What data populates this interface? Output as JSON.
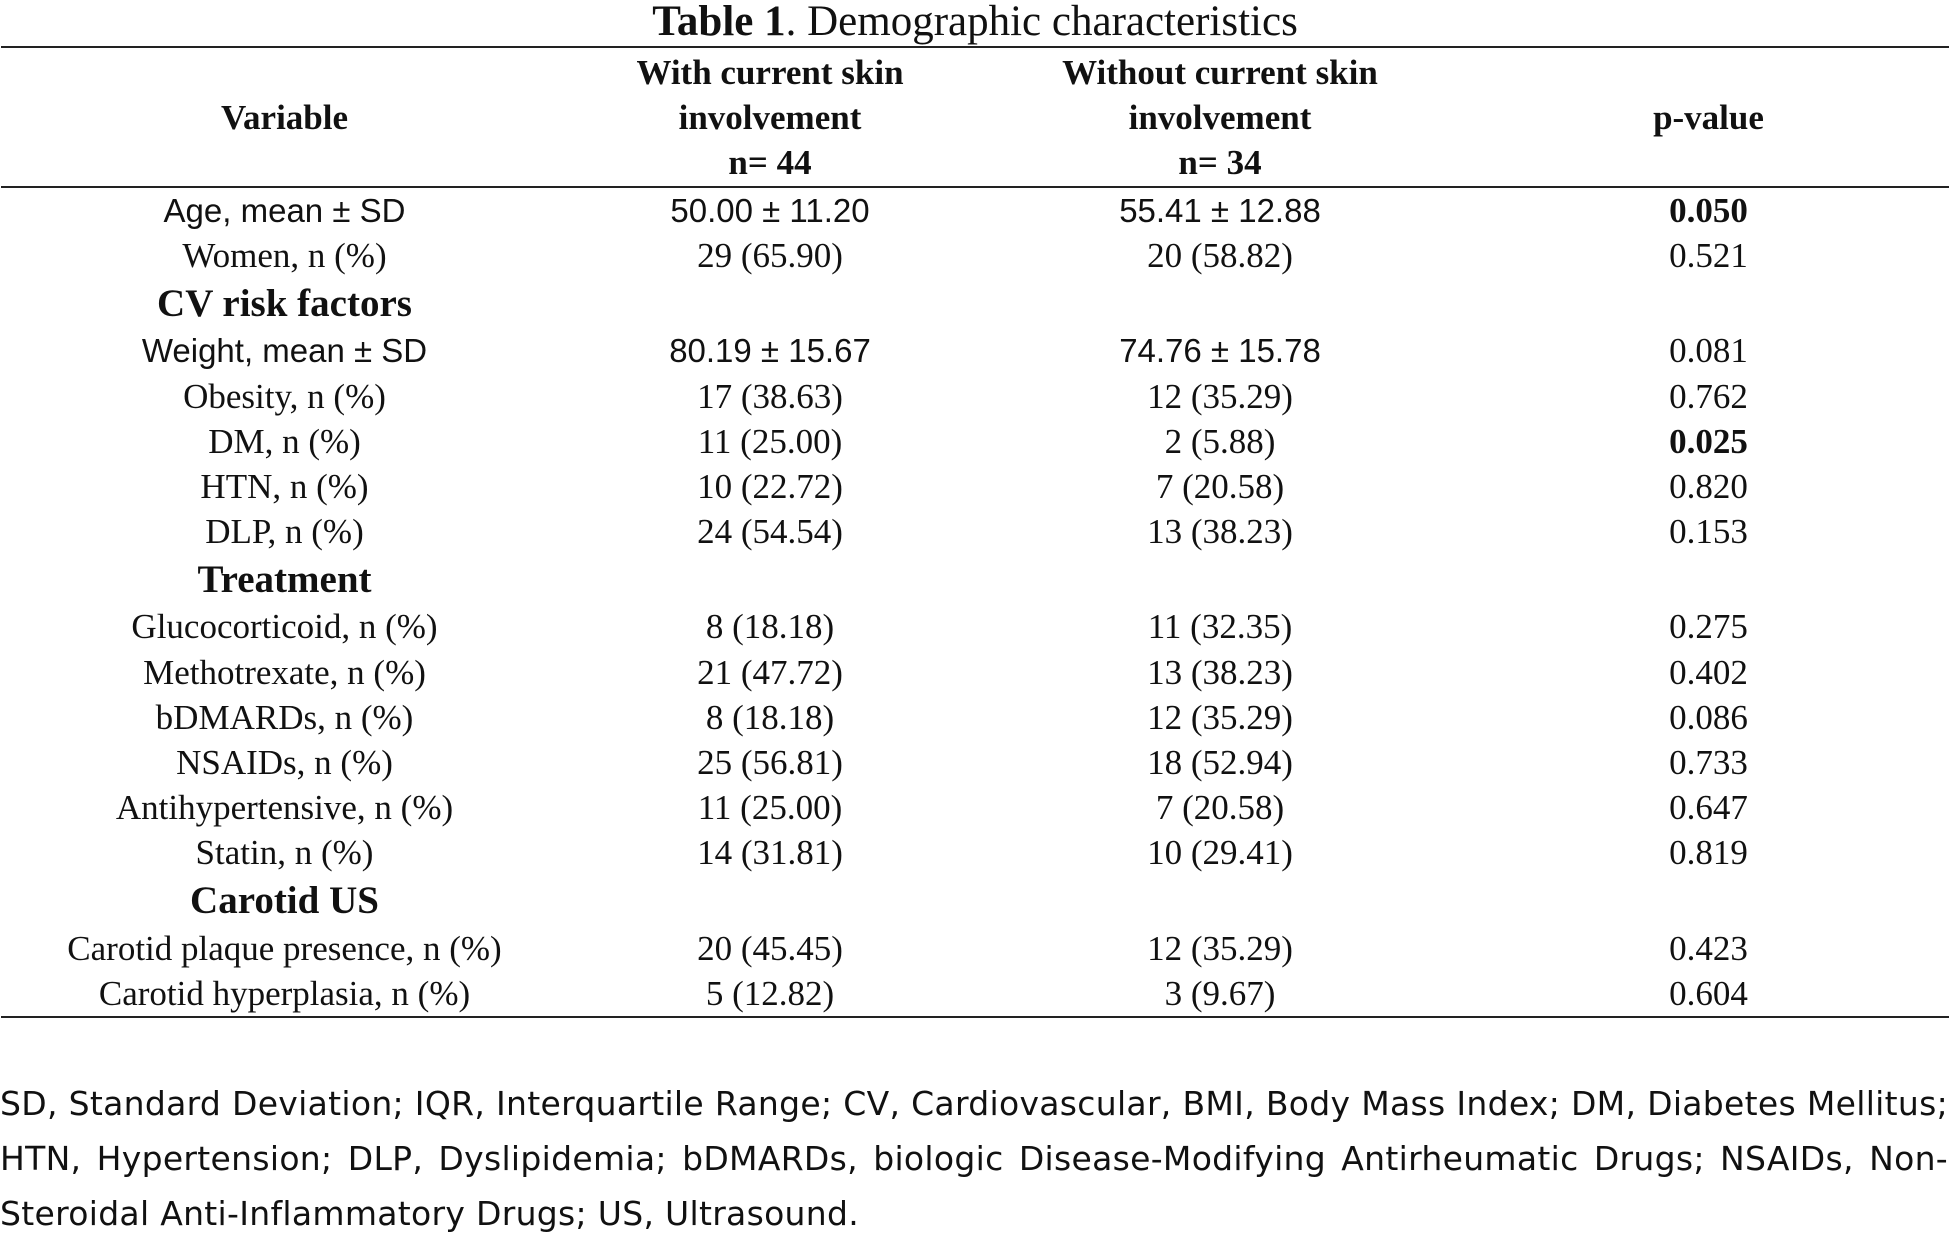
{
  "caption": {
    "label": "Table 1",
    "text": ". Demographic characteristics"
  },
  "table": {
    "headers": {
      "variable": "Variable",
      "with_line1": "With current skin",
      "with_line2": "involvement",
      "with_line3": "n= 44",
      "without_line1": "Without current skin",
      "without_line2": "involvement",
      "without_line3": "n= 34",
      "pvalue": "p-value"
    },
    "rows": [
      {
        "variable": "Age, mean ± SD",
        "with": "50.00 ± 11.20",
        "without": "55.41 ± 12.88",
        "p": "0.050"
      },
      {
        "variable": "Women, n (%)",
        "with": "29 (65.90)",
        "without": "20 (58.82)",
        "p": "0.521"
      },
      {
        "section": "CV risk factors"
      },
      {
        "variable": "Weight, mean ± SD",
        "with": "80.19 ± 15.67",
        "without": "74.76 ± 15.78",
        "p": "0.081"
      },
      {
        "variable": "Obesity, n (%)",
        "with": "17 (38.63)",
        "without": "12 (35.29)",
        "p": "0.762"
      },
      {
        "variable": "DM, n (%)",
        "with": "11 (25.00)",
        "without": "2 (5.88)",
        "p": "0.025"
      },
      {
        "variable": "HTN, n (%)",
        "with": "10 (22.72)",
        "without": "7 (20.58)",
        "p": "0.820"
      },
      {
        "variable": "DLP, n (%)",
        "with": "24 (54.54)",
        "without": "13 (38.23)",
        "p": "0.153"
      },
      {
        "section": "Treatment"
      },
      {
        "variable": "Glucocorticoid, n (%)",
        "with": "8 (18.18)",
        "without": "11 (32.35)",
        "p": "0.275"
      },
      {
        "variable": "Methotrexate, n (%)",
        "with": "21 (47.72)",
        "without": "13 (38.23)",
        "p": "0.402"
      },
      {
        "variable": "bDMARDs, n (%)",
        "with": "8 (18.18)",
        "without": "12 (35.29)",
        "p": "0.086"
      },
      {
        "variable": "NSAIDs, n (%)",
        "with": "25 (56.81)",
        "without": "18 (52.94)",
        "p": "0.733"
      },
      {
        "variable": "Antihypertensive, n (%)",
        "with": "11 (25.00)",
        "without": "7 (20.58)",
        "p": "0.647"
      },
      {
        "variable": "Statin, n (%)",
        "with": "14 (31.81)",
        "without": "10 (29.41)",
        "p": "0.819"
      },
      {
        "section": "Carotid US"
      },
      {
        "variable": "Carotid plaque presence, n (%)",
        "with": "20 (45.45)",
        "without": "12 (35.29)",
        "p": "0.423"
      },
      {
        "variable": "Carotid hyperplasia, n (%)",
        "with": "5 (12.82)",
        "without": "3 (9.67)",
        "p": "0.604"
      }
    ]
  },
  "footnote": "SD, Standard Deviation; IQR, Interquartile Range; CV, Cardiovascular, BMI, Body Mass Index; DM, Diabetes Mellitus; HTN, Hypertension; DLP, Dyslipidemia; bDMARDs, biologic Disease-Modifying Antirheumatic Drugs; NSAIDs, Non-Steroidal Anti-Inflammatory Drugs; US, Ultrasound."
}
